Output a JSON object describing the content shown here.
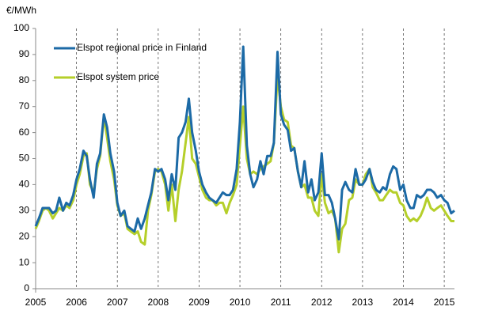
{
  "chart_data": {
    "type": "line",
    "y_label": "€/MWh",
    "x": [
      2005,
      2005.08,
      2005.17,
      2005.25,
      2005.33,
      2005.42,
      2005.5,
      2005.58,
      2005.67,
      2005.75,
      2005.83,
      2005.92,
      2006,
      2006.08,
      2006.17,
      2006.25,
      2006.33,
      2006.42,
      2006.5,
      2006.58,
      2006.67,
      2006.75,
      2006.83,
      2006.92,
      2007,
      2007.08,
      2007.17,
      2007.25,
      2007.33,
      2007.42,
      2007.5,
      2007.58,
      2007.67,
      2007.75,
      2007.83,
      2007.92,
      2008,
      2008.08,
      2008.17,
      2008.25,
      2008.33,
      2008.42,
      2008.5,
      2008.58,
      2008.67,
      2008.75,
      2008.83,
      2008.92,
      2009,
      2009.08,
      2009.17,
      2009.25,
      2009.33,
      2009.42,
      2009.5,
      2009.58,
      2009.67,
      2009.75,
      2009.83,
      2009.92,
      2010,
      2010.08,
      2010.17,
      2010.25,
      2010.33,
      2010.42,
      2010.5,
      2010.58,
      2010.67,
      2010.75,
      2010.83,
      2010.92,
      2011,
      2011.08,
      2011.17,
      2011.25,
      2011.33,
      2011.42,
      2011.5,
      2011.58,
      2011.67,
      2011.75,
      2011.83,
      2011.92,
      2012,
      2012.08,
      2012.17,
      2012.25,
      2012.33,
      2012.42,
      2012.5,
      2012.58,
      2012.67,
      2012.75,
      2012.83,
      2012.92,
      2013,
      2013.08,
      2013.17,
      2013.25,
      2013.33,
      2013.42,
      2013.5,
      2013.58,
      2013.67,
      2013.75,
      2013.83,
      2013.92,
      2014,
      2014.08,
      2014.17,
      2014.25,
      2014.33,
      2014.42,
      2014.5,
      2014.58,
      2014.67,
      2014.75,
      2014.83,
      2014.92,
      2015,
      2015.08,
      2015.17,
      2015.25
    ],
    "series": [
      {
        "name": "Elspot regional price in Finland",
        "color": "#1c6aa6",
        "values": [
          24,
          27,
          31,
          31,
          31,
          29,
          30,
          35,
          30,
          33,
          32,
          36,
          42,
          46,
          53,
          51,
          42,
          35,
          48,
          52,
          67,
          62,
          52,
          45,
          33,
          28,
          30,
          24,
          23,
          22,
          27,
          23,
          27,
          32,
          37,
          46,
          45,
          46,
          42,
          34,
          44,
          38,
          58,
          60,
          64,
          73,
          60,
          53,
          45,
          40,
          37,
          35,
          34,
          33,
          35,
          37,
          36,
          36,
          38,
          46,
          64,
          93,
          55,
          44,
          39,
          42,
          49,
          44,
          51,
          51,
          56,
          91,
          67,
          63,
          61,
          53,
          54,
          45,
          39,
          49,
          37,
          42,
          34,
          37,
          52,
          36,
          36,
          33,
          27,
          19,
          38,
          41,
          38,
          37,
          46,
          40,
          40,
          42,
          46,
          41,
          38,
          37,
          39,
          38,
          44,
          47,
          46,
          38,
          40,
          34,
          31,
          31,
          36,
          35,
          36,
          38,
          38,
          37,
          35,
          36,
          34,
          33,
          29,
          30
        ]
      },
      {
        "name": "Elspot system price",
        "color": "#b5cf2a",
        "values": [
          23,
          26,
          30,
          31,
          30,
          27,
          29,
          31,
          30,
          32,
          31,
          34,
          40,
          44,
          51,
          52,
          40,
          37,
          46,
          51,
          66,
          58,
          49,
          42,
          32,
          28,
          29,
          23,
          22,
          21,
          22,
          18,
          17,
          30,
          36,
          45,
          46,
          45,
          40,
          30,
          40,
          26,
          38,
          45,
          56,
          66,
          50,
          48,
          43,
          38,
          35,
          34,
          34,
          32,
          33,
          33,
          29,
          33,
          36,
          40,
          55,
          70,
          50,
          44,
          45,
          44,
          46,
          47,
          48,
          49,
          56,
          82,
          70,
          65,
          64,
          55,
          54,
          45,
          39,
          40,
          35,
          35,
          30,
          28,
          44,
          33,
          29,
          30,
          27,
          14,
          23,
          25,
          34,
          35,
          42,
          40,
          40,
          44,
          46,
          39,
          37,
          34,
          34,
          36,
          38,
          37,
          37,
          33,
          32,
          28,
          26,
          27,
          26,
          28,
          31,
          35,
          31,
          30,
          31,
          32,
          30,
          28,
          26,
          26
        ]
      }
    ],
    "xlim": [
      2005,
      2015.25
    ],
    "xticks": [
      2005,
      2006,
      2007,
      2008,
      2009,
      2010,
      2011,
      2012,
      2013,
      2014,
      2015
    ],
    "ylim": [
      0,
      100
    ],
    "yticks": [
      0,
      10,
      20,
      30,
      40,
      50,
      60,
      70,
      80,
      90,
      100
    ],
    "grid": "x"
  }
}
